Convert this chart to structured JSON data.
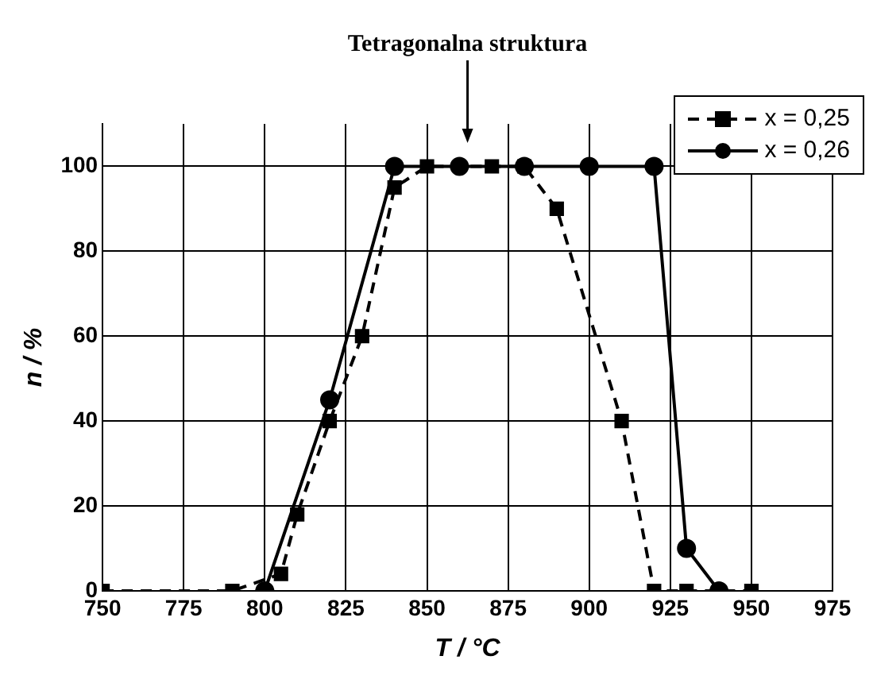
{
  "chart_data": {
    "type": "line",
    "xlabel": "T / °C",
    "ylabel": "n / %",
    "annotations": [
      "Tetragonalna struktura"
    ],
    "series": [
      {
        "name": "x = 0,25",
        "color": "#000000",
        "marker": "square",
        "line_style": "dashed",
        "x": [
          750,
          790,
          805,
          810,
          820,
          830,
          840,
          850,
          870,
          880,
          890,
          910,
          920,
          930,
          950
        ],
        "values": [
          0,
          0,
          4,
          18,
          40,
          60,
          95,
          100,
          100,
          100,
          90,
          40,
          0,
          0,
          0
        ]
      },
      {
        "name": "x = 0,26",
        "color": "#000000",
        "marker": "circle",
        "line_style": "solid",
        "x": [
          800,
          820,
          840,
          860,
          880,
          900,
          920,
          930,
          940
        ],
        "values": [
          0,
          45,
          100,
          100,
          100,
          100,
          100,
          10,
          0
        ]
      }
    ],
    "xlim": [
      750,
      975
    ],
    "xticks": [
      750,
      775,
      800,
      825,
      850,
      875,
      900,
      925,
      950,
      975
    ],
    "ylim": [
      0,
      110
    ],
    "yticks": [
      0,
      20,
      40,
      60,
      80,
      100
    ],
    "grid": true,
    "legend": "top right"
  }
}
